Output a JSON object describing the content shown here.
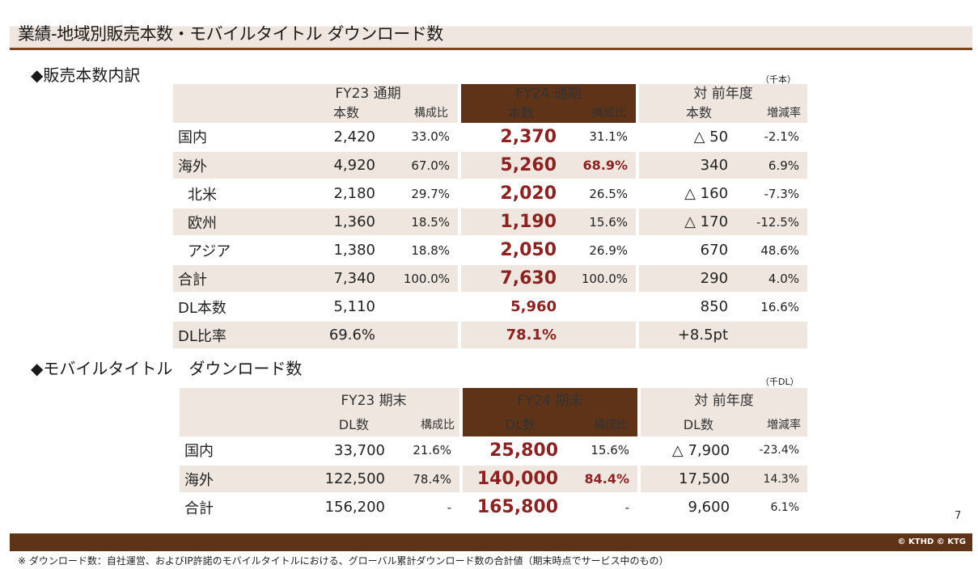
{
  "page_title": "業績-地域別販売本数・モバイルタイトル ダウンロード数",
  "sales": {
    "heading": "◆販売本数内訳",
    "unit": "（千本）",
    "header": {
      "fy23": "FY23 通期",
      "fy24": "FY24 通期",
      "yoy": "対 前年度",
      "units": "本数",
      "ratio": "構成比",
      "change": "増減率"
    },
    "rows": [
      {
        "label": "国内",
        "fy23": "2,420",
        "fy23_ratio": "33.0%",
        "fy24": "2,370",
        "fy24_ratio": "31.1%",
        "yoy": "△ 50",
        "rate": "-2.1%"
      },
      {
        "label": "海外",
        "fy23": "4,920",
        "fy23_ratio": "67.0%",
        "fy24": "5,260",
        "fy24_ratio": "68.9%",
        "yoy": "340",
        "rate": "6.9%"
      },
      {
        "label": "北米",
        "fy23": "2,180",
        "fy23_ratio": "29.7%",
        "fy24": "2,020",
        "fy24_ratio": "26.5%",
        "yoy": "△ 160",
        "rate": "-7.3%"
      },
      {
        "label": "欧州",
        "fy23": "1,360",
        "fy23_ratio": "18.5%",
        "fy24": "1,190",
        "fy24_ratio": "15.6%",
        "yoy": "△ 170",
        "rate": "-12.5%"
      },
      {
        "label": "アジア",
        "fy23": "1,380",
        "fy23_ratio": "18.8%",
        "fy24": "2,050",
        "fy24_ratio": "26.9%",
        "yoy": "670",
        "rate": "48.6%"
      },
      {
        "label": "合計",
        "fy23": "7,340",
        "fy23_ratio": "100.0%",
        "fy24": "7,630",
        "fy24_ratio": "100.0%",
        "yoy": "290",
        "rate": "4.0%"
      },
      {
        "label": "DL本数",
        "fy23": "5,110",
        "fy24": "5,960",
        "yoy": "850",
        "rate": "16.6%"
      },
      {
        "label": "DL比率",
        "fy23": "69.6%",
        "fy24": "78.1%",
        "yoy": "+8.5pt"
      }
    ]
  },
  "mobile": {
    "heading": "◆モバイルタイトル　ダウンロード数",
    "unit": "（千DL）",
    "header": {
      "fy23": "FY23 期末",
      "fy24": "FY24 期末",
      "yoy": "対 前年度",
      "dl": "DL数",
      "ratio": "構成比",
      "change": "増減率"
    },
    "rows": [
      {
        "label": "国内",
        "fy23": "33,700",
        "fy23_ratio": "21.6%",
        "fy24": "25,800",
        "fy24_ratio": "15.6%",
        "yoy": "△ 7,900",
        "rate": "-23.4%"
      },
      {
        "label": "海外",
        "fy23": "122,500",
        "fy23_ratio": "78.4%",
        "fy24": "140,000",
        "fy24_ratio": "84.4%",
        "yoy": "17,500",
        "rate": "14.3%"
      },
      {
        "label": "合計",
        "fy23": "156,200",
        "fy23_ratio": "-",
        "fy24": "165,800",
        "fy24_ratio": "-",
        "yoy": "9,600",
        "rate": "6.1%"
      }
    ]
  },
  "page_number": "7",
  "copyright": "© KTHD © KTG",
  "footnote": "※ ダウンロード数：自社運営、およびIP許諾のモバイルタイトルにおける、グローバル累計ダウンロード数の合計値（期末時点でサービス中のもの）"
}
